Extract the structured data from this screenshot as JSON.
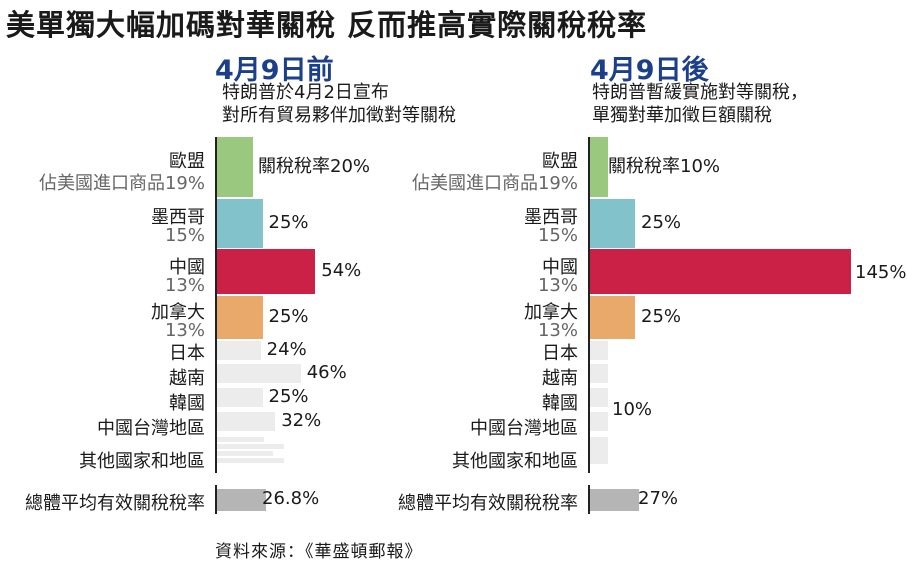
{
  "title": "美單獨大幅加碼對華關稅  反而推高實際關稅稅率",
  "source": "資料來源：《華盛頓郵報》",
  "colors": {
    "eu": "#9bc87f",
    "mexico": "#82c2ca",
    "china": "#cb2147",
    "canada": "#e8a96a",
    "other": "#ececec",
    "average": "#b5b5b5",
    "date": "#1c3f8c"
  },
  "chart_data": [
    {
      "type": "bar",
      "date_label": "4月9日前",
      "description": [
        "特朗普於4月2日宣布",
        "對所有貿易夥伴加徵對等關稅"
      ],
      "categories": [
        "歐盟",
        "墨西哥",
        "中國",
        "加拿大",
        "日本",
        "越南",
        "韓國",
        "中國台灣地區",
        "其他國家和地區",
        "總體平均有效關稅稅率"
      ],
      "import_share_labels": [
        "佔美國進口商品19%",
        "15%",
        "13%",
        "13%",
        "",
        "",
        "",
        "",
        "",
        ""
      ],
      "values": [
        20,
        25,
        54,
        25,
        24,
        46,
        25,
        32,
        null,
        26.8
      ],
      "value_labels": [
        "關稅稅率20%",
        "25%",
        "54%",
        "25%",
        "24%",
        "46%",
        "25%",
        "32%",
        "",
        "26.8%"
      ]
    },
    {
      "type": "bar",
      "date_label": "4月9日後",
      "description": [
        "特朗普暫緩實施對等關稅，",
        "單獨對華加徵巨額關稅"
      ],
      "categories": [
        "歐盟",
        "墨西哥",
        "中國",
        "加拿大",
        "日本",
        "越南",
        "韓國",
        "中國台灣地區",
        "其他國家和地區",
        "總體平均有效關稅稅率"
      ],
      "import_share_labels": [
        "佔美國進口商品19%",
        "15%",
        "13%",
        "13%",
        "",
        "",
        "",
        "",
        "",
        ""
      ],
      "values": [
        10,
        25,
        145,
        25,
        10,
        10,
        10,
        10,
        10,
        27
      ],
      "value_labels": [
        "關稅稅率10%",
        "25%",
        "145%",
        "25%",
        "",
        "",
        "10%",
        "",
        "",
        "27%"
      ]
    }
  ]
}
